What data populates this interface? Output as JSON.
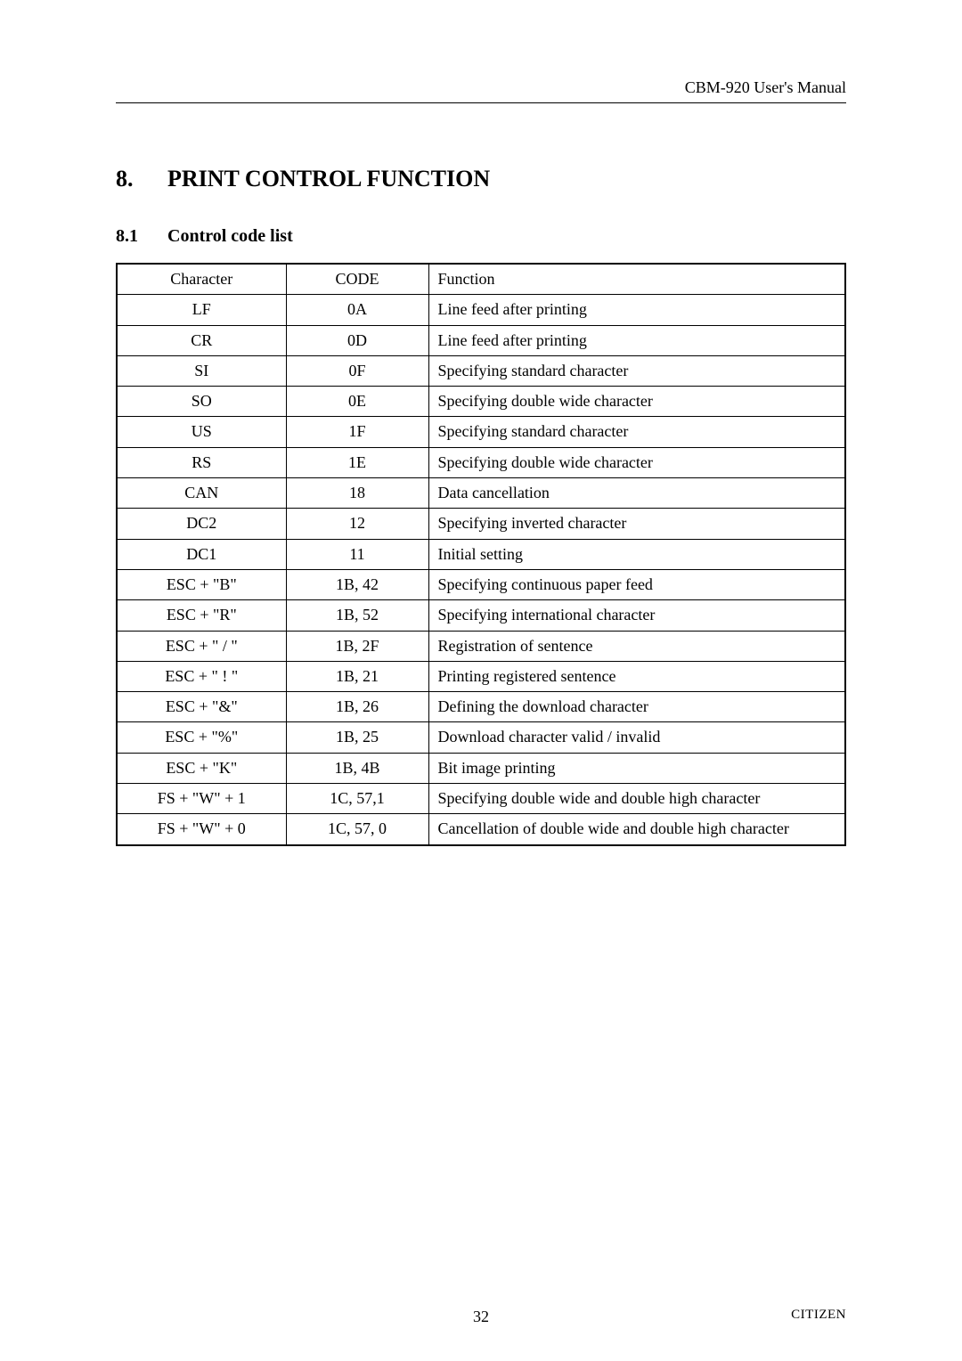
{
  "running_head": "CBM-920 User's Manual",
  "section": {
    "number": "8.",
    "title": "PRINT CONTROL FUNCTION"
  },
  "subsection": {
    "number": "8.1",
    "title": "Control code list"
  },
  "table": {
    "headers": {
      "char": "Character",
      "code": "CODE",
      "func": "Function"
    },
    "rows": [
      {
        "char": "LF",
        "code": "0A",
        "func": "Line feed after printing"
      },
      {
        "char": "CR",
        "code": "0D",
        "func": "Line feed after printing"
      },
      {
        "char": "SI",
        "code": "0F",
        "func": "Specifying standard character"
      },
      {
        "char": "SO",
        "code": "0E",
        "func": "Specifying double wide character"
      },
      {
        "char": "US",
        "code": "1F",
        "func": "Specifying standard character"
      },
      {
        "char": "RS",
        "code": "1E",
        "func": "Specifying double wide character"
      },
      {
        "char": "CAN",
        "code": "18",
        "func": "Data cancellation"
      },
      {
        "char": "DC2",
        "code": "12",
        "func": "Specifying inverted character"
      },
      {
        "char": "DC1",
        "code": "11",
        "func": "Initial setting"
      },
      {
        "char": "ESC + \"B\"",
        "code": "1B, 42",
        "func": "Specifying continuous paper feed"
      },
      {
        "char": "ESC + \"R\"",
        "code": "1B, 52",
        "func": "Specifying international character"
      },
      {
        "char": "ESC + \" / \"",
        "code": "1B, 2F",
        "func": "Registration of sentence"
      },
      {
        "char": "ESC + \" ! \"",
        "code": "1B, 21",
        "func": "Printing registered sentence"
      },
      {
        "char": "ESC + \"&\"",
        "code": "1B, 26",
        "func": "Defining the download character"
      },
      {
        "char": "ESC + \"%\"",
        "code": "1B, 25",
        "func": "Download character valid / invalid"
      },
      {
        "char": "ESC + \"K\"",
        "code": "1B, 4B",
        "func": "Bit image printing"
      },
      {
        "char": "FS + \"W\" + 1",
        "code": "1C, 57,1",
        "func": "Specifying double wide and double high character"
      },
      {
        "char": "FS + \"W\" + 0",
        "code": "1C, 57, 0",
        "func": "Cancellation of double wide and double high character"
      }
    ]
  },
  "footer": {
    "page": "32",
    "brand": "CITIZEN"
  }
}
